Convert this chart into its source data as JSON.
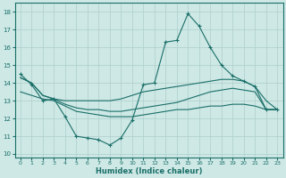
{
  "title": "",
  "xlabel": "Humidex (Indice chaleur)",
  "ylabel": "",
  "background_color": "#cde8e5",
  "grid_color": "#aecfcc",
  "line_color": "#1a6e68",
  "xlim": [
    -0.5,
    23.5
  ],
  "ylim": [
    9.8,
    18.5
  ],
  "xticks": [
    0,
    1,
    2,
    3,
    4,
    5,
    6,
    7,
    8,
    9,
    10,
    11,
    12,
    13,
    14,
    15,
    16,
    17,
    18,
    19,
    20,
    21,
    22,
    23
  ],
  "yticks": [
    10,
    11,
    12,
    13,
    14,
    15,
    16,
    17,
    18
  ],
  "series1_x": [
    0,
    1,
    2,
    3,
    4,
    5,
    6,
    7,
    8,
    9,
    10,
    11,
    12,
    13,
    14,
    15,
    16,
    17,
    18,
    19,
    20,
    21,
    22,
    23
  ],
  "series1_y": [
    14.5,
    13.9,
    13.0,
    13.1,
    12.1,
    11.0,
    10.9,
    10.8,
    10.5,
    10.9,
    11.9,
    13.9,
    14.0,
    16.3,
    16.4,
    17.9,
    17.2,
    16.0,
    15.0,
    14.4,
    14.1,
    13.8,
    12.5,
    12.5
  ],
  "series2_x": [
    0,
    1,
    2,
    3,
    4,
    5,
    6,
    7,
    8,
    9,
    10,
    11,
    12,
    13,
    14,
    15,
    16,
    17,
    18,
    19,
    20,
    21,
    22,
    23
  ],
  "series2_y": [
    14.3,
    14.0,
    13.3,
    13.1,
    13.0,
    13.0,
    13.0,
    13.0,
    13.0,
    13.1,
    13.3,
    13.5,
    13.6,
    13.7,
    13.8,
    13.9,
    14.0,
    14.1,
    14.2,
    14.2,
    14.1,
    13.8,
    13.0,
    12.5
  ],
  "series3_x": [
    0,
    1,
    2,
    3,
    4,
    5,
    6,
    7,
    8,
    9,
    10,
    11,
    12,
    13,
    14,
    15,
    16,
    17,
    18,
    19,
    20,
    21,
    22,
    23
  ],
  "series3_y": [
    14.3,
    14.0,
    13.3,
    13.1,
    12.8,
    12.6,
    12.5,
    12.5,
    12.4,
    12.4,
    12.5,
    12.6,
    12.7,
    12.8,
    12.9,
    13.1,
    13.3,
    13.5,
    13.6,
    13.7,
    13.6,
    13.5,
    12.5,
    12.5
  ],
  "series4_x": [
    0,
    1,
    2,
    3,
    4,
    5,
    6,
    7,
    8,
    9,
    10,
    11,
    12,
    13,
    14,
    15,
    16,
    17,
    18,
    19,
    20,
    21,
    22,
    23
  ],
  "series4_y": [
    13.5,
    13.3,
    13.1,
    13.0,
    12.7,
    12.4,
    12.3,
    12.2,
    12.1,
    12.1,
    12.1,
    12.2,
    12.3,
    12.4,
    12.5,
    12.5,
    12.6,
    12.7,
    12.7,
    12.8,
    12.8,
    12.7,
    12.5,
    12.5
  ]
}
